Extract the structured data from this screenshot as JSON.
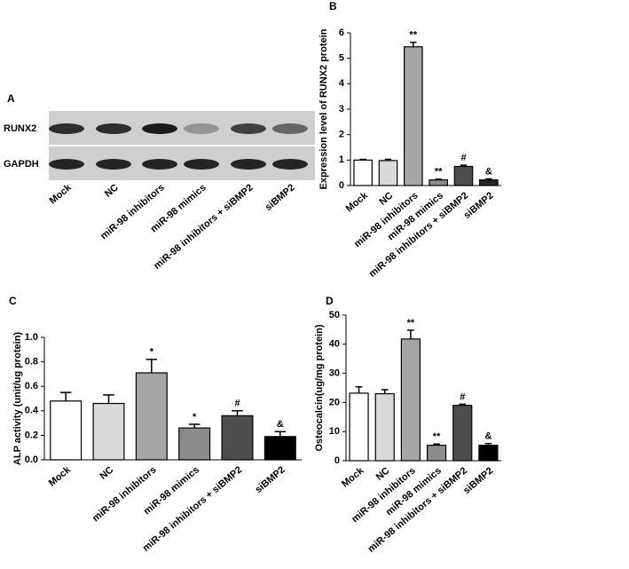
{
  "blot": {
    "label": "A",
    "rows": [
      "RUNX2",
      "GAPDH"
    ],
    "lanes": [
      "Mock",
      "NC",
      "miR-98 inhibitors",
      "miR-98 mimics",
      "miR-98 inhibitors + siBMP2",
      "siBMP2"
    ]
  },
  "chart_data": [
    {
      "type": "bar",
      "label": "B",
      "ylabel": "Expression level of RUNX2 protein",
      "categories": [
        "Mock",
        "NC",
        "miR-98 inhibitors",
        "miR-98 mimics",
        "miR-98 inhibitors + siBMP2",
        "siBMP2"
      ],
      "values": [
        1.0,
        0.98,
        5.45,
        0.22,
        0.75,
        0.22
      ],
      "errors": [
        0.03,
        0.05,
        0.18,
        0.03,
        0.05,
        0.04
      ],
      "annotations": [
        null,
        null,
        "**",
        "**",
        "#",
        "&"
      ],
      "colors": [
        "#ffffff",
        "#d9d9d9",
        "#a6a6a6",
        "#8c8c8c",
        "#4d4d4d",
        "#262626"
      ],
      "ylim": [
        0,
        6
      ],
      "yticks": [
        0,
        1,
        2,
        3,
        4,
        5,
        6
      ]
    },
    {
      "type": "bar",
      "label": "C",
      "ylabel": "ALP activity (unit/ug protein)",
      "categories": [
        "Mock",
        "NC",
        "miR-98 inhibitors",
        "miR-98 mimics",
        "miR-98 inhibitors + siBMP2",
        "siBMP2"
      ],
      "values": [
        0.48,
        0.46,
        0.71,
        0.26,
        0.36,
        0.19
      ],
      "errors": [
        0.07,
        0.07,
        0.11,
        0.03,
        0.04,
        0.04
      ],
      "annotations": [
        null,
        null,
        "*",
        "*",
        "#",
        "&"
      ],
      "colors": [
        "#ffffff",
        "#d9d9d9",
        "#a6a6a6",
        "#8c8c8c",
        "#4d4d4d",
        "#000000"
      ],
      "ylim": [
        0,
        1.0
      ],
      "yticks": [
        {
          "value": 0,
          "label": "0.0"
        },
        0.2,
        0.4,
        0.6,
        0.8,
        {
          "value": 1.0,
          "label": "1.0"
        }
      ]
    },
    {
      "type": "bar",
      "label": "D",
      "ylabel": "Osteocalcin(ug/mg protein)",
      "categories": [
        "Mock",
        "NC",
        "miR-98 inhibitors",
        "miR-98 mimics",
        "miR-98 inhibitors + siBMP2",
        "siBMP2"
      ],
      "values": [
        23.2,
        23.0,
        41.8,
        5.3,
        19.0,
        5.3
      ],
      "errors": [
        2.2,
        1.4,
        3.0,
        0.4,
        0.4,
        0.6
      ],
      "annotations": [
        null,
        null,
        "**",
        "**",
        "#",
        "&"
      ],
      "colors": [
        "#ffffff",
        "#d9d9d9",
        "#a6a6a6",
        "#8c8c8c",
        "#4d4d4d",
        "#000000"
      ],
      "ylim": [
        0,
        50
      ],
      "yticks": [
        0,
        10,
        20,
        30,
        40,
        50
      ]
    }
  ]
}
